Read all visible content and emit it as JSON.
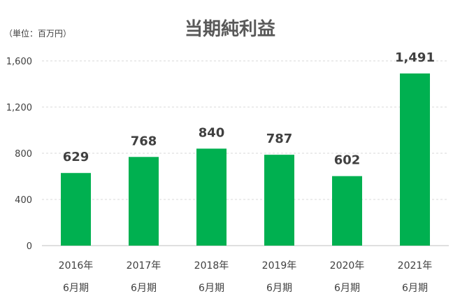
{
  "chart_data": {
    "type": "bar",
    "title": "当期純利益",
    "unit_label": "（単位：百万円）",
    "categories": [
      [
        "2016年",
        "6月期"
      ],
      [
        "2017年",
        "6月期"
      ],
      [
        "2018年",
        "6月期"
      ],
      [
        "2019年",
        "6月期"
      ],
      [
        "2020年",
        "6月期"
      ],
      [
        "2021年",
        "6月期"
      ]
    ],
    "values": [
      629,
      768,
      840,
      787,
      602,
      1491
    ],
    "value_labels": [
      "629",
      "768",
      "840",
      "787",
      "602",
      "1,491"
    ],
    "ylim": [
      0,
      1600
    ],
    "yticks": [
      0,
      400,
      800,
      1200,
      1600
    ],
    "ytick_labels": [
      "0",
      "400",
      "800",
      "1,200",
      "1,600"
    ],
    "grid": true,
    "bar_color": "#00b050"
  }
}
